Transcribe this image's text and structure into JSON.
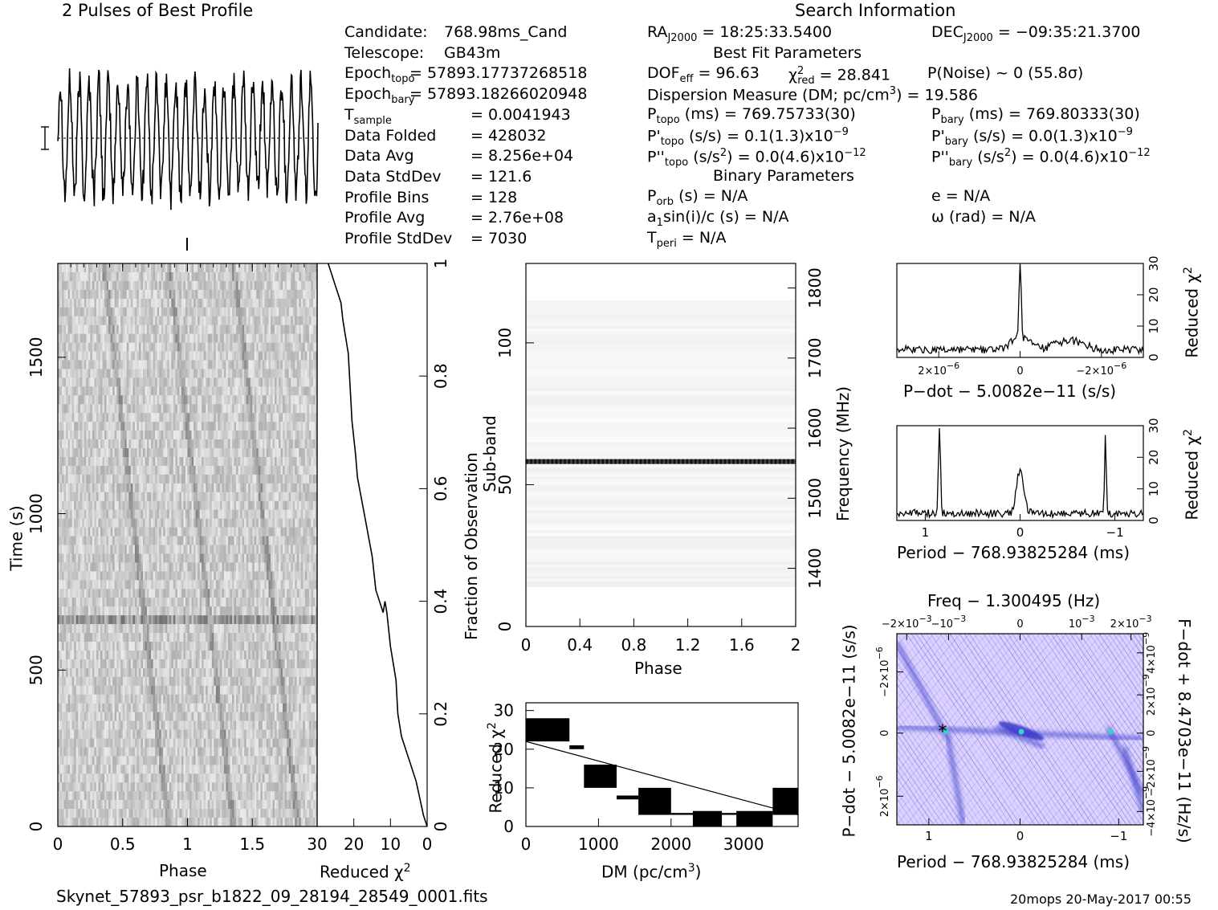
{
  "header": {
    "profile_title": "2 Pulses of Best Profile",
    "search_title": "Search Information"
  },
  "candidate": [
    {
      "label": "Candidate:",
      "value": "768.98ms_Cand"
    },
    {
      "label": "Telescope:",
      "value": "GB43m"
    },
    {
      "label": "Epoch",
      "sub": "topo",
      "value": "= 57893.17737268518"
    },
    {
      "label": "Epoch",
      "sub": "bary",
      "value": "= 57893.18266020948"
    },
    {
      "label": "T",
      "sub": "sample",
      "value": "=   0.0041943"
    },
    {
      "label": "Data Folded",
      "value": "=   428032"
    },
    {
      "label": "Data Avg",
      "value": "=   8.256e+04"
    },
    {
      "label": "Data StdDev",
      "value": "=   121.6"
    },
    {
      "label": "Profile Bins",
      "value": "=   128"
    },
    {
      "label": "Profile Avg",
      "value": "=   2.76e+08"
    },
    {
      "label": "Profile StdDev",
      "value": "=   7030"
    }
  ],
  "search": {
    "ra": {
      "label": "RA",
      "sub": "J2000",
      "value": "= 18:25:33.5400"
    },
    "dec": {
      "label": "DEC",
      "sub": "J2000",
      "value": "= −09:35:21.3700"
    },
    "best_fit_title": "Best Fit Parameters",
    "dof": {
      "label": "DOF",
      "sub": "eff",
      "value": "= 96.63"
    },
    "chi": {
      "label": "χ",
      "sup": "2",
      "sub": "red",
      "value": "= 28.841"
    },
    "pnoise": "P(Noise) ~ 0    (55.8σ)",
    "dm_line": "Dispersion Measure (DM; pc/cm",
    "dm_sup": "3",
    "dm_value": ") = 19.586",
    "ptopo": {
      "label": "P",
      "sub": "topo",
      "value": "(ms)  =  769.75733(30)"
    },
    "pbary": {
      "label": "P",
      "sub": "bary",
      "value": "(ms)  =  769.80333(30)"
    },
    "pdtopo": {
      "label": "P'",
      "sub": "topo",
      "value": "(s/s) =  0.1(1.3)x10",
      "sup": "−9"
    },
    "pdbary": {
      "label": "P'",
      "sub": "bary",
      "value": "(s/s) = 0.0(1.3)x10",
      "sup": "−9"
    },
    "pddtopo": {
      "label": "P''",
      "sub": "topo",
      "value": "(s/s",
      "sup2": "2",
      "value2": ") = 0.0(4.6)x10",
      "sup": "−12"
    },
    "pddbary": {
      "label": "P''",
      "sub": "bary",
      "value": "(s/s",
      "sup2": "2",
      "value2": ") = 0.0(4.6)x10",
      "sup": "−12"
    },
    "binary_title": "Binary Parameters",
    "porb": {
      "label": "P",
      "sub": "orb",
      "value": "(s) = N/A"
    },
    "e": "e = N/A",
    "a1": "a",
    "a1_sub": "1",
    "a1_value": "sin(i)/c (s) = N/A",
    "omega": "ω (rad) = N/A",
    "tperi": {
      "label": "T",
      "sub": "peri",
      "value": "= N/A"
    }
  },
  "footer": {
    "filename": "Skynet_57893_psr_b1822_09_28194_28549_0001.fits",
    "stamp": "20mops 20-May-2017 00:55"
  },
  "colors": {
    "ink": "#000000",
    "grey_cell": "#c8c8c8",
    "pp_bg": "#ddd2ff",
    "pp_blue": "#3438c8",
    "pp_cyan": "#3ad0c8"
  },
  "chart_data": [
    {
      "id": "profile",
      "type": "line",
      "title": "2 Pulses of Best Profile",
      "x_range": [
        0,
        2
      ],
      "pulse_count": 27,
      "note": "noisy oscillating profile over 2 pulse periods"
    },
    {
      "id": "time_phase",
      "type": "heatmap",
      "xlabel": "Phase",
      "ylabel": "Time (s)",
      "xlim": [
        0,
        2
      ],
      "ylim": [
        0,
        1800
      ],
      "xticks": [
        "0",
        "0.5",
        "1",
        "1.5"
      ],
      "yticks": [
        "0",
        "500",
        "1000",
        "1500"
      ],
      "bright_row_time": 680
    },
    {
      "id": "chi_vs_fraction",
      "type": "line",
      "xlabel": "Reduced χ",
      "xlabel_sup": "2",
      "ylabel": "Fraction of Observation",
      "xlim": [
        30,
        0
      ],
      "ylim": [
        0,
        1
      ],
      "xticks": [
        "30",
        "20",
        "10",
        "0"
      ],
      "yticks": [
        "0",
        "0.2",
        "0.4",
        "0.6",
        "0.8",
        "1"
      ],
      "points": [
        [
          0,
          0
        ],
        [
          1,
          0.02
        ],
        [
          2,
          0.05
        ],
        [
          3,
          0.08
        ],
        [
          5,
          0.12
        ],
        [
          7,
          0.16
        ],
        [
          8,
          0.2
        ],
        [
          8.5,
          0.26
        ],
        [
          10,
          0.32
        ],
        [
          11,
          0.38
        ],
        [
          11.5,
          0.4
        ],
        [
          12,
          0.38
        ],
        [
          14,
          0.42
        ],
        [
          15,
          0.48
        ],
        [
          17,
          0.55
        ],
        [
          19,
          0.62
        ],
        [
          19.5,
          0.66
        ],
        [
          20.5,
          0.72
        ],
        [
          21,
          0.78
        ],
        [
          21.5,
          0.84
        ],
        [
          23,
          0.9
        ],
        [
          23.5,
          0.93
        ],
        [
          25,
          0.96
        ],
        [
          26,
          0.98
        ],
        [
          26.5,
          0.99
        ],
        [
          27,
          1.0
        ]
      ]
    },
    {
      "id": "subband_phase",
      "type": "heatmap",
      "xlabel": "Phase",
      "ylabel": "Sub-band",
      "y2label": "Frequency (MHz)",
      "xlim": [
        0,
        2
      ],
      "ylim": [
        0,
        128
      ],
      "y2lim": [
        1317,
        1835
      ],
      "xticks": [
        "0",
        "0.4",
        "0.8",
        "1.2",
        "1.6",
        "2"
      ],
      "yticks": [
        "0",
        "50",
        "100"
      ],
      "y2ticks": [
        "1400",
        "1500",
        "1600",
        "1700",
        "1800"
      ],
      "bright_subband": 58
    },
    {
      "id": "dm_curve",
      "type": "line",
      "xlabel": "DM (pc/cm",
      "xlabel_sup": "3",
      "xlabel_end": ")",
      "ylabel": "Reduced χ",
      "ylabel_sup": "2",
      "xlim": [
        0,
        3750
      ],
      "ylim": [
        0,
        32
      ],
      "xticks": [
        "0",
        "1000",
        "2000",
        "3000"
      ],
      "yticks": [
        "0",
        "10",
        "20",
        "30"
      ],
      "segments": [
        {
          "x": [
            0,
            600
          ],
          "y": [
            22,
            28
          ]
        },
        {
          "x": [
            600,
            800
          ],
          "y": [
            20,
            21
          ]
        },
        {
          "x": [
            800,
            1250
          ],
          "y": [
            10,
            16
          ]
        },
        {
          "x": [
            1250,
            1550
          ],
          "y": [
            7,
            8
          ]
        },
        {
          "x": [
            1550,
            2000
          ],
          "y": [
            3,
            10
          ]
        },
        {
          "x": [
            2000,
            2300
          ],
          "y": [
            3,
            3.5
          ]
        },
        {
          "x": [
            2300,
            2700
          ],
          "y": [
            0,
            4
          ]
        },
        {
          "x": [
            2700,
            2900
          ],
          "y": [
            3,
            3.5
          ]
        },
        {
          "x": [
            2900,
            3400
          ],
          "y": [
            0,
            4
          ]
        },
        {
          "x": [
            3400,
            3750
          ],
          "y": [
            3,
            10
          ]
        }
      ]
    },
    {
      "id": "pdot_chi",
      "type": "line",
      "xlabel": "P−dot − 5.0082e−11 (s/s)",
      "ylabel": "Reduced χ",
      "ylabel_sup": "2",
      "xlim": [
        2.6e-06,
        -2.6e-06
      ],
      "ylim": [
        0,
        30
      ],
      "xticks": [
        "2×10",
        "0",
        "−2×10"
      ],
      "xtick_exp": "−6",
      "yticks": [
        "0",
        "10",
        "20",
        "30"
      ],
      "peak_at": 0,
      "peak_value": 29
    },
    {
      "id": "period_chi",
      "type": "line",
      "xlabel": "Period − 768.93825284 (ms)",
      "ylabel": "Reduced χ",
      "ylabel_sup": "2",
      "xlim": [
        1.3,
        -1.3
      ],
      "ylim": [
        0,
        30
      ],
      "xticks": [
        "1",
        "0",
        "−1"
      ],
      "yticks": [
        "0",
        "10",
        "20",
        "30"
      ],
      "peaks": [
        [
          0.85,
          27
        ],
        [
          0.0,
          16
        ],
        [
          -0.9,
          26
        ]
      ]
    },
    {
      "id": "p_pdot_plane",
      "type": "heatmap",
      "top_label": "Freq − 1.300495 (Hz)",
      "xlabel": "Period − 768.93825284 (ms)",
      "ylabel": "P−dot − 5.0082e−11 (s/s)",
      "y2label": "F−dot + 8.4703e−11 (Hz/s)",
      "xticks": [
        "1",
        "0",
        "−1"
      ],
      "top_ticks": [
        "−2×10",
        "−10",
        "0",
        "10",
        "2×10"
      ],
      "top_tick_exp": "−3",
      "yticks": [
        "−2×10",
        "0",
        "2×10"
      ],
      "ytick_exp": "−6",
      "y2ticks": [
        "4×10",
        "2×10",
        "0",
        "−2×10",
        "−4×10"
      ],
      "y2tick_exp": "−9"
    }
  ]
}
